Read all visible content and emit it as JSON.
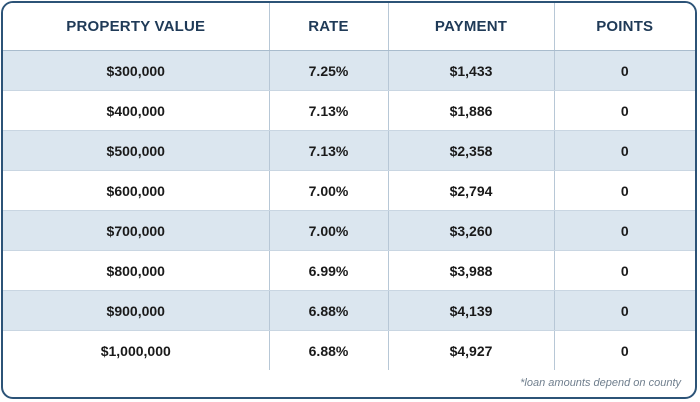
{
  "table": {
    "headers": [
      "PROPERTY VALUE",
      "RATE",
      "PAYMENT",
      "POINTS"
    ],
    "rows": [
      [
        "$300,000",
        "7.25%",
        "$1,433",
        "0"
      ],
      [
        "$400,000",
        "7.13%",
        "$1,886",
        "0"
      ],
      [
        "$500,000",
        "7.13%",
        "$2,358",
        "0"
      ],
      [
        "$600,000",
        "7.00%",
        "$2,794",
        "0"
      ],
      [
        "$700,000",
        "7.00%",
        "$3,260",
        "0"
      ],
      [
        "$800,000",
        "6.99%",
        "$3,988",
        "0"
      ],
      [
        "$900,000",
        "6.88%",
        "$4,139",
        "0"
      ],
      [
        "$1,000,000",
        "6.88%",
        "$4,927",
        "0"
      ]
    ]
  },
  "footnote": "*loan amounts depend on county",
  "colors": {
    "border": "#2c5377",
    "header_text": "#1f3a57",
    "row_alt": "#dbe6ef"
  }
}
